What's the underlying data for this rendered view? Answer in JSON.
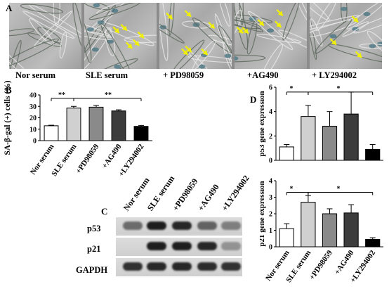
{
  "panels": {
    "A": "A",
    "B": "B",
    "C": "C",
    "D": "D"
  },
  "conditions_A": [
    "Nor serum",
    "SLE serum",
    "+ PD98059",
    "+AG490",
    "+ LY294002"
  ],
  "colors": {
    "arrow": "#f0f000",
    "bar_fill": [
      "#ffffff",
      "#d0d0d0",
      "#8a8a8a",
      "#3c3c3c",
      "#000000"
    ]
  },
  "chart_data": [
    {
      "type": "bar",
      "panel": "B",
      "categories": [
        "Nor serum",
        "SLE serum",
        "+PD98059",
        "+AG490",
        "+LY294002"
      ],
      "values": [
        13,
        28.5,
        29.3,
        26,
        12.5
      ],
      "errors": [
        0.5,
        1.5,
        1.5,
        1,
        0.8
      ],
      "xlabel": "",
      "ylabel": "SA-β-gal (+) cells (%)",
      "ylim": [
        0,
        40
      ],
      "yticks": [
        "0",
        "10",
        "20",
        "30",
        "40"
      ],
      "annotations": [
        "**",
        "**"
      ]
    },
    {
      "type": "bar",
      "panel": "D-top",
      "categories": [
        "Nor serum",
        "SLE serum",
        "+PD98059",
        "+AG490",
        "+LY294002"
      ],
      "values": [
        1.1,
        3.6,
        2.8,
        3.8,
        0.9
      ],
      "errors": [
        0.2,
        0.9,
        1.2,
        1.8,
        0.4
      ],
      "ylabel": "p53 gene expression",
      "ylim": [
        0,
        6
      ],
      "yticks": [
        "0",
        "2",
        "4",
        "6"
      ],
      "annotations": [
        "*",
        "*"
      ]
    },
    {
      "type": "bar",
      "panel": "D-bottom",
      "categories": [
        "Nor serum",
        "SLE serum",
        "+PD98059",
        "+AG490",
        "+LY294002"
      ],
      "values": [
        1.1,
        2.7,
        2.0,
        2.05,
        0.45
      ],
      "errors": [
        0.3,
        0.4,
        0.3,
        0.5,
        0.1
      ],
      "ylabel": "p21 gene expression",
      "ylim": [
        0,
        4
      ],
      "yticks": [
        "0",
        "1",
        "2",
        "3",
        "4"
      ],
      "annotations": [
        "*",
        "*"
      ]
    }
  ],
  "blot": {
    "lanes": [
      "Nor serum",
      "SLE serum",
      "+PD98059",
      "+AG490",
      "+LY294002"
    ],
    "rows": [
      "p53",
      "p21",
      "GAPDH"
    ]
  }
}
